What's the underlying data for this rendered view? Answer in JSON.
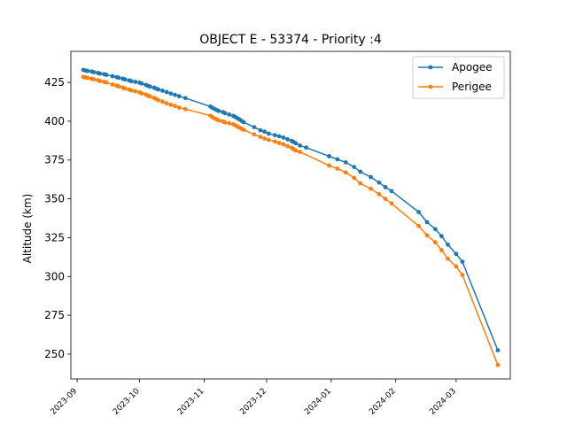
{
  "chart_data": {
    "type": "line",
    "title": "OBJECT E - 53374 - Priority :4",
    "xlabel": "",
    "ylabel": "Altitude (km)",
    "x_ticks": [
      "2023-09",
      "2023-10",
      "2023-11",
      "2023-12",
      "2024-01",
      "2024-02",
      "2024-03"
    ],
    "y_ticks": [
      250,
      275,
      300,
      325,
      350,
      375,
      400,
      425
    ],
    "xlim": [
      "2023-08-29",
      "2024-03-27"
    ],
    "ylim": [
      234,
      445
    ],
    "grid": false,
    "legend_position": "top-right",
    "series": [
      {
        "name": "Apogee",
        "color": "#1f77b4",
        "points": [
          [
            "2023-09-04",
            433.0
          ],
          [
            "2023-09-05",
            432.7
          ],
          [
            "2023-09-06",
            432.4
          ],
          [
            "2023-09-08",
            432.0
          ],
          [
            "2023-09-09",
            431.6
          ],
          [
            "2023-09-11",
            431.1
          ],
          [
            "2023-09-12",
            430.7
          ],
          [
            "2023-09-14",
            430.3
          ],
          [
            "2023-09-15",
            429.9
          ],
          [
            "2023-09-18",
            429.0
          ],
          [
            "2023-09-20",
            428.4
          ],
          [
            "2023-09-21",
            428.0
          ],
          [
            "2023-09-23",
            427.4
          ],
          [
            "2023-09-24",
            426.9
          ],
          [
            "2023-09-26",
            426.3
          ],
          [
            "2023-09-27",
            425.8
          ],
          [
            "2023-09-29",
            425.3
          ],
          [
            "2023-10-01",
            424.8
          ],
          [
            "2023-10-02",
            424.3
          ],
          [
            "2023-10-04",
            423.4
          ],
          [
            "2023-10-05",
            422.8
          ],
          [
            "2023-10-06",
            422.3
          ],
          [
            "2023-10-08",
            421.6
          ],
          [
            "2023-10-09",
            421.0
          ],
          [
            "2023-10-10",
            420.5
          ],
          [
            "2023-10-12",
            419.7
          ],
          [
            "2023-10-14",
            418.8
          ],
          [
            "2023-10-16",
            417.8
          ],
          [
            "2023-10-18",
            417.0
          ],
          [
            "2023-10-20",
            416.1
          ],
          [
            "2023-10-23",
            414.9
          ],
          [
            "2023-11-04",
            409.5
          ],
          [
            "2023-11-05",
            408.6
          ],
          [
            "2023-11-06",
            407.9
          ],
          [
            "2023-11-07",
            407.2
          ],
          [
            "2023-11-08",
            406.6
          ],
          [
            "2023-11-10",
            405.9
          ],
          [
            "2023-11-11",
            405.2
          ],
          [
            "2023-11-13",
            404.3
          ],
          [
            "2023-11-15",
            403.4
          ],
          [
            "2023-11-16",
            402.7
          ],
          [
            "2023-11-17",
            401.9
          ],
          [
            "2023-11-18",
            401.1
          ],
          [
            "2023-11-19",
            400.2
          ],
          [
            "2023-11-20",
            399.3
          ],
          [
            "2023-11-25",
            396.2
          ],
          [
            "2023-11-28",
            394.2
          ],
          [
            "2023-11-30",
            393.3
          ],
          [
            "2023-12-02",
            392.0
          ],
          [
            "2023-12-05",
            391.0
          ],
          [
            "2023-12-07",
            390.3
          ],
          [
            "2023-12-09",
            389.5
          ],
          [
            "2023-12-11",
            388.4
          ],
          [
            "2023-12-13",
            387.3
          ],
          [
            "2023-12-14",
            386.6
          ],
          [
            "2023-12-15",
            385.8
          ],
          [
            "2023-12-17",
            384.3
          ],
          [
            "2023-12-20",
            383.0
          ],
          [
            "2023-12-31",
            377.5
          ],
          [
            "2024-01-04",
            375.5
          ],
          [
            "2024-01-08",
            373.5
          ],
          [
            "2024-01-12",
            370.5
          ],
          [
            "2024-01-15",
            367.5
          ],
          [
            "2024-01-20",
            364.0
          ],
          [
            "2024-01-24",
            360.5
          ],
          [
            "2024-01-27",
            357.5
          ],
          [
            "2024-01-30",
            355.0
          ],
          [
            "2024-02-12",
            341.5
          ],
          [
            "2024-02-16",
            335.0
          ],
          [
            "2024-02-20",
            330.5
          ],
          [
            "2024-02-23",
            326.0
          ],
          [
            "2024-02-26",
            320.5
          ],
          [
            "2024-03-01",
            314.5
          ],
          [
            "2024-03-04",
            309.5
          ],
          [
            "2024-03-21",
            252.5
          ]
        ]
      },
      {
        "name": "Perigee",
        "color": "#ff7f0e",
        "points": [
          [
            "2023-09-04",
            428.5
          ],
          [
            "2023-09-05",
            428.2
          ],
          [
            "2023-09-06",
            427.9
          ],
          [
            "2023-09-08",
            427.4
          ],
          [
            "2023-09-09",
            427.0
          ],
          [
            "2023-09-11",
            426.4
          ],
          [
            "2023-09-12",
            425.9
          ],
          [
            "2023-09-14",
            425.4
          ],
          [
            "2023-09-15",
            425.0
          ],
          [
            "2023-09-18",
            423.6
          ],
          [
            "2023-09-20",
            422.9
          ],
          [
            "2023-09-21",
            422.4
          ],
          [
            "2023-09-23",
            421.7
          ],
          [
            "2023-09-24",
            421.1
          ],
          [
            "2023-09-26",
            420.4
          ],
          [
            "2023-09-27",
            419.9
          ],
          [
            "2023-09-29",
            419.3
          ],
          [
            "2023-10-01",
            418.6
          ],
          [
            "2023-10-02",
            417.9
          ],
          [
            "2023-10-04",
            417.2
          ],
          [
            "2023-10-05",
            416.5
          ],
          [
            "2023-10-06",
            415.9
          ],
          [
            "2023-10-08",
            415.0
          ],
          [
            "2023-10-09",
            414.3
          ],
          [
            "2023-10-10",
            413.6
          ],
          [
            "2023-10-12",
            412.6
          ],
          [
            "2023-10-14",
            411.5
          ],
          [
            "2023-10-16",
            410.6
          ],
          [
            "2023-10-18",
            409.8
          ],
          [
            "2023-10-20",
            408.8
          ],
          [
            "2023-10-23",
            407.8
          ],
          [
            "2023-11-04",
            403.6
          ],
          [
            "2023-11-05",
            402.6
          ],
          [
            "2023-11-06",
            401.9
          ],
          [
            "2023-11-07",
            401.2
          ],
          [
            "2023-11-08",
            400.6
          ],
          [
            "2023-11-10",
            399.9
          ],
          [
            "2023-11-11",
            399.2
          ],
          [
            "2023-11-13",
            398.7
          ],
          [
            "2023-11-15",
            398.0
          ],
          [
            "2023-11-16",
            397.3
          ],
          [
            "2023-11-17",
            396.6
          ],
          [
            "2023-11-18",
            395.9
          ],
          [
            "2023-11-19",
            395.1
          ],
          [
            "2023-11-20",
            394.5
          ],
          [
            "2023-11-25",
            391.5
          ],
          [
            "2023-11-28",
            389.9
          ],
          [
            "2023-11-30",
            388.9
          ],
          [
            "2023-12-02",
            387.9
          ],
          [
            "2023-12-05",
            386.9
          ],
          [
            "2023-12-07",
            386.0
          ],
          [
            "2023-12-09",
            385.1
          ],
          [
            "2023-12-11",
            384.0
          ],
          [
            "2023-12-13",
            382.9
          ],
          [
            "2023-12-14",
            382.0
          ],
          [
            "2023-12-15",
            381.1
          ],
          [
            "2023-12-17",
            380.2
          ],
          [
            "2023-12-31",
            371.5
          ],
          [
            "2024-01-04",
            369.5
          ],
          [
            "2024-01-08",
            367.0
          ],
          [
            "2024-01-12",
            363.5
          ],
          [
            "2024-01-15",
            360.0
          ],
          [
            "2024-01-20",
            356.5
          ],
          [
            "2024-01-24",
            353.0
          ],
          [
            "2024-01-27",
            350.0
          ],
          [
            "2024-01-30",
            347.0
          ],
          [
            "2024-02-12",
            332.5
          ],
          [
            "2024-02-16",
            326.5
          ],
          [
            "2024-02-20",
            322.0
          ],
          [
            "2024-02-23",
            317.0
          ],
          [
            "2024-02-26",
            311.5
          ],
          [
            "2024-03-01",
            306.5
          ],
          [
            "2024-03-04",
            301.0
          ],
          [
            "2024-03-21",
            243.0
          ]
        ]
      }
    ]
  }
}
